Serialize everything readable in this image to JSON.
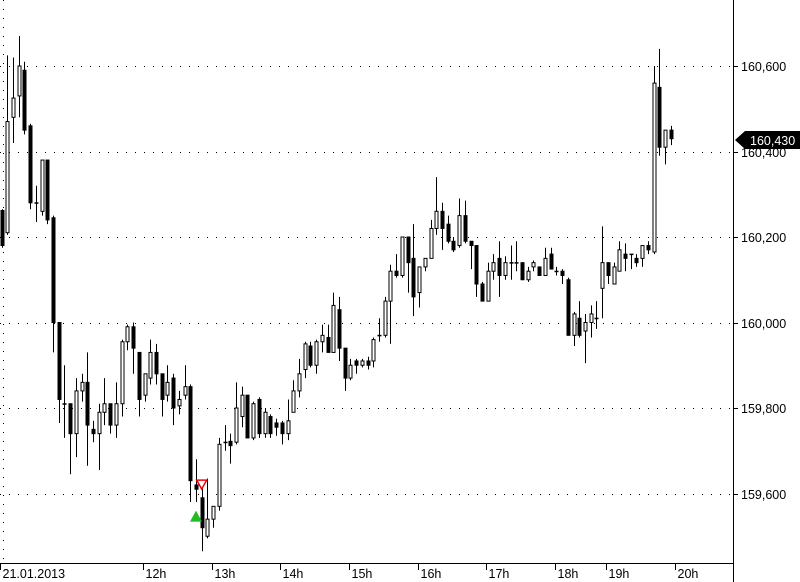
{
  "chart_data": {
    "type": "candlestick",
    "title": "",
    "xlabel": "",
    "ylabel": "",
    "ylim": [
      159440,
      160760
    ],
    "grid": "horizontal dotted",
    "y_ticks": [
      {
        "value": 160600,
        "label": "160,600"
      },
      {
        "value": 160400,
        "label": "160,400"
      },
      {
        "value": 160200,
        "label": "160,200"
      },
      {
        "value": 160000,
        "label": "160,000"
      },
      {
        "value": 159800,
        "label": "159,800"
      },
      {
        "value": 159600,
        "label": "159,600"
      }
    ],
    "x_ticks": [
      {
        "bar": 0,
        "label": "21.01.2013"
      },
      {
        "bar": 25,
        "label": "12h"
      },
      {
        "bar": 37,
        "label": "13h"
      },
      {
        "bar": 49,
        "label": "14h"
      },
      {
        "bar": 61,
        "label": "15h"
      },
      {
        "bar": 73,
        "label": "16h"
      },
      {
        "bar": 85,
        "label": "17h"
      },
      {
        "bar": 97,
        "label": "18h"
      },
      {
        "bar": 106,
        "label": "19h"
      },
      {
        "bar": 118,
        "label": "20h"
      }
    ],
    "last_price": {
      "value": 160430,
      "label": "160,430"
    },
    "markers": [
      {
        "type": "buy-arrow-up",
        "bar": 34,
        "price": 159560,
        "color": "#22bb22"
      },
      {
        "type": "sell-arrow-down",
        "bar": 35,
        "price": 159615,
        "color": "#ee0000"
      }
    ],
    "colors": {
      "up_body": "#ffffff",
      "down_body": "#000000",
      "outline": "#000000",
      "tag_bg": "#000000"
    },
    "ohlc_fields": [
      "open",
      "high",
      "low",
      "close"
    ],
    "candles": [
      [
        160262,
        160265,
        160175,
        160180
      ],
      [
        160210,
        160625,
        160205,
        160470
      ],
      [
        160480,
        160620,
        160420,
        160525
      ],
      [
        160530,
        160670,
        160480,
        160600
      ],
      [
        160590,
        160610,
        160440,
        160450
      ],
      [
        160460,
        160465,
        160265,
        160280
      ],
      [
        160280,
        160320,
        160235,
        160280
      ],
      [
        160260,
        160380,
        160250,
        160380
      ],
      [
        160380,
        160380,
        160230,
        160240
      ],
      [
        160245,
        160250,
        159930,
        160000
      ],
      [
        160000,
        160000,
        159765,
        159820
      ],
      [
        159810,
        159900,
        159730,
        159810
      ],
      [
        159810,
        159810,
        159645,
        159740
      ],
      [
        159740,
        159870,
        159685,
        159840
      ],
      [
        159840,
        159880,
        159815,
        159860
      ],
      [
        159860,
        159930,
        159665,
        159760
      ],
      [
        159750,
        159770,
        159720,
        159740
      ],
      [
        159740,
        159810,
        159655,
        159790
      ],
      [
        159790,
        159870,
        159760,
        159810
      ],
      [
        159810,
        159810,
        159740,
        159760
      ],
      [
        159760,
        159860,
        159730,
        159810
      ],
      [
        159810,
        159960,
        159780,
        159955
      ],
      [
        159955,
        159995,
        159935,
        159990
      ],
      [
        159990,
        160000,
        159880,
        159940
      ],
      [
        159930,
        159930,
        159780,
        159820
      ],
      [
        159830,
        159880,
        159815,
        159880
      ],
      [
        159870,
        159960,
        159855,
        159930
      ],
      [
        159930,
        159950,
        159855,
        159880
      ],
      [
        159880,
        159880,
        159780,
        159820
      ],
      [
        159830,
        159900,
        159815,
        159860
      ],
      [
        159870,
        159880,
        159760,
        159800
      ],
      [
        159805,
        159840,
        159785,
        159820
      ],
      [
        159830,
        159900,
        159820,
        159850
      ],
      [
        159850,
        159855,
        159580,
        159630
      ],
      [
        159620,
        159680,
        159580,
        159610
      ],
      [
        159590,
        159615,
        159465,
        159520
      ],
      [
        159500,
        159635,
        159495,
        159540
      ],
      [
        159540,
        159570,
        159520,
        159570
      ],
      [
        159570,
        159730,
        159560,
        159715
      ],
      [
        159720,
        159760,
        159700,
        159720
      ],
      [
        159722,
        159740,
        159670,
        159712
      ],
      [
        159720,
        159860,
        159715,
        159800
      ],
      [
        159780,
        159850,
        159755,
        159830
      ],
      [
        159830,
        159830,
        159730,
        159730
      ],
      [
        159730,
        159815,
        159725,
        159810
      ],
      [
        159820,
        159825,
        159730,
        159740
      ],
      [
        159740,
        159800,
        159730,
        159790
      ],
      [
        159780,
        159785,
        159730,
        159740
      ],
      [
        159765,
        159775,
        159735,
        159755
      ],
      [
        159765,
        159770,
        159715,
        159740
      ],
      [
        159740,
        159820,
        159725,
        159770
      ],
      [
        159790,
        159865,
        159790,
        159840
      ],
      [
        159840,
        159915,
        159825,
        159880
      ],
      [
        159890,
        159955,
        159870,
        159950
      ],
      [
        159945,
        159955,
        159895,
        159900
      ],
      [
        159900,
        159960,
        159880,
        159955
      ],
      [
        159955,
        159995,
        159930,
        159970
      ],
      [
        159965,
        159995,
        159930,
        159930
      ],
      [
        159930,
        160070,
        159930,
        160040
      ],
      [
        160030,
        160060,
        159910,
        159940
      ],
      [
        159940,
        159940,
        159840,
        159870
      ],
      [
        159870,
        159915,
        159865,
        159900
      ],
      [
        159910,
        159915,
        159880,
        159900
      ],
      [
        159900,
        159915,
        159895,
        159910
      ],
      [
        159910,
        159920,
        159890,
        159900
      ],
      [
        159910,
        159965,
        159895,
        159960
      ],
      [
        159970,
        160010,
        159955,
        159970
      ],
      [
        159970,
        160060,
        159965,
        160050
      ],
      [
        160050,
        160135,
        159950,
        160120
      ],
      [
        160120,
        160160,
        160105,
        160110
      ],
      [
        160110,
        160200,
        160105,
        160200
      ],
      [
        160200,
        160200,
        160070,
        160140
      ],
      [
        160150,
        160230,
        160015,
        160060
      ],
      [
        160070,
        160130,
        160035,
        160130
      ],
      [
        160130,
        160150,
        160120,
        160150
      ],
      [
        160150,
        160240,
        160150,
        160220
      ],
      [
        160220,
        160340,
        160205,
        160260
      ],
      [
        160260,
        160280,
        160170,
        160220
      ],
      [
        160230,
        160250,
        160185,
        160190
      ],
      [
        160190,
        160200,
        160165,
        160170
      ],
      [
        160180,
        160290,
        160175,
        160250
      ],
      [
        160250,
        160285,
        160185,
        160190
      ],
      [
        160190,
        160190,
        160125,
        160180
      ],
      [
        160180,
        160180,
        160060,
        160090
      ],
      [
        160090,
        160095,
        160050,
        160050
      ],
      [
        160050,
        160140,
        160050,
        160120
      ],
      [
        160120,
        160160,
        160100,
        160140
      ],
      [
        160150,
        160190,
        160060,
        160110
      ],
      [
        160110,
        160155,
        160100,
        160140
      ],
      [
        160140,
        160180,
        160100,
        160140
      ],
      [
        160140,
        160190,
        160120,
        160140
      ],
      [
        160140,
        160140,
        160100,
        160100
      ],
      [
        160100,
        160130,
        160095,
        160120
      ],
      [
        160130,
        160145,
        160120,
        160140
      ],
      [
        160130,
        160130,
        160110,
        160110
      ],
      [
        160110,
        160175,
        160110,
        160150
      ],
      [
        160160,
        160175,
        160125,
        160125
      ],
      [
        160120,
        160130,
        160110,
        160120
      ],
      [
        160120,
        160125,
        160090,
        160110
      ],
      [
        160100,
        160105,
        159970,
        159970
      ],
      [
        159970,
        160025,
        159945,
        160020
      ],
      [
        160010,
        160050,
        159965,
        159970
      ],
      [
        159980,
        160020,
        159905,
        160000
      ],
      [
        160000,
        160040,
        159965,
        160020
      ],
      [
        160010,
        160050,
        159985,
        160010
      ],
      [
        160080,
        160225,
        160010,
        160140
      ],
      [
        160140,
        160140,
        160090,
        160110
      ],
      [
        160090,
        160140,
        160090,
        160130
      ],
      [
        160120,
        160190,
        160120,
        160170
      ],
      [
        160160,
        160185,
        160120,
        160150
      ],
      [
        160160,
        160160,
        160125,
        160160
      ],
      [
        160150,
        160160,
        160130,
        160140
      ],
      [
        160150,
        160180,
        160130,
        160180
      ],
      [
        160180,
        160190,
        160160,
        160170
      ],
      [
        160165,
        160600,
        160160,
        160560
      ],
      [
        160550,
        160640,
        160390,
        160410
      ],
      [
        160410,
        160450,
        160370,
        160450
      ],
      [
        160450,
        160460,
        160415,
        160430
      ]
    ]
  }
}
